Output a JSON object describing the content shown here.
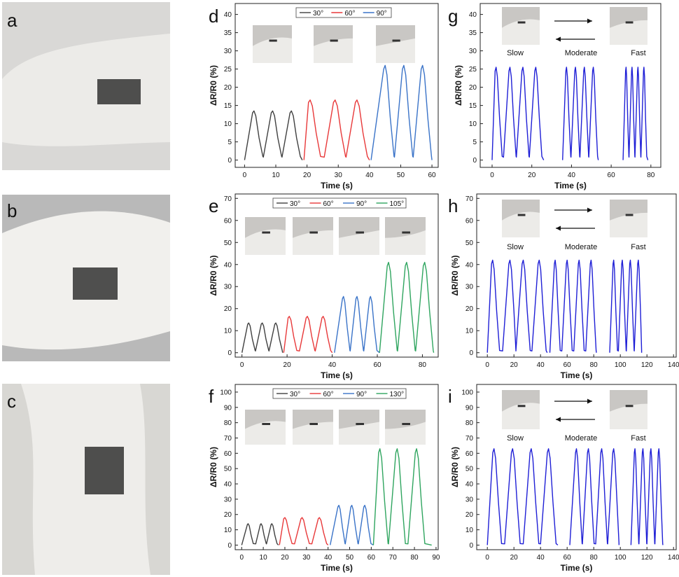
{
  "panel_letters": [
    "a",
    "b",
    "c",
    "d",
    "e",
    "f",
    "g",
    "h",
    "i"
  ],
  "photos": [
    {
      "name": "photo-a-wrist",
      "bg": "#d9d8d6",
      "skin": "#ecebe8"
    },
    {
      "name": "photo-b-elbow",
      "bg": "#b9b9b9",
      "skin": "#f1f0ed"
    },
    {
      "name": "photo-c-knee",
      "bg": "#d8d7d3",
      "skin": "#eeedea"
    }
  ],
  "colors": {
    "c30": "#404040",
    "c60": "#e8393a",
    "c90": "#3a73c8",
    "c105": "#2fa55f",
    "cblue": "#1f1fd6",
    "axis": "#222222"
  },
  "speed_labels": {
    "slow": "Slow",
    "moderate": "Moderate",
    "fast": "Fast"
  },
  "chart_data": [
    {
      "panel": "d",
      "type": "line",
      "xlabel": "Time (s)",
      "ylabel": "ΔR/R0 (%)",
      "xlim": [
        -3,
        62
      ],
      "ylim": [
        -2,
        43
      ],
      "xticks": [
        0,
        10,
        20,
        30,
        40,
        50,
        60
      ],
      "yticks": [
        0,
        5,
        10,
        15,
        20,
        25,
        30,
        35,
        40
      ],
      "legend": [
        "30°",
        "60°",
        "90°"
      ],
      "series": [
        {
          "name": "30°",
          "color": "#404040",
          "peaks": [
            3,
            9,
            15
          ],
          "height": 13.5,
          "period": 6,
          "start": 0,
          "end": 18.5
        },
        {
          "name": "60°",
          "color": "#e8393a",
          "peaks": [
            21,
            29,
            36
          ],
          "height": 16.5,
          "period": 7,
          "start": 19,
          "end": 40
        },
        {
          "name": "90°",
          "color": "#3a73c8",
          "peaks": [
            45,
            51,
            57
          ],
          "height": 26,
          "period": 6,
          "start": 40.5,
          "end": 60
        }
      ],
      "insets": 3
    },
    {
      "panel": "e",
      "type": "line",
      "xlabel": "Time (s)",
      "ylabel": "ΔR/R0 (%)",
      "xlim": [
        -3,
        87
      ],
      "ylim": [
        -2,
        72
      ],
      "xticks": [
        0,
        20,
        40,
        60,
        80
      ],
      "yticks": [
        0,
        10,
        20,
        30,
        40,
        50,
        60,
        70
      ],
      "legend": [
        "30°",
        "60°",
        "90°",
        "105°"
      ],
      "series": [
        {
          "name": "30°",
          "color": "#404040",
          "peaks": [
            3,
            9,
            15
          ],
          "height": 13.5,
          "period": 6,
          "start": 0,
          "end": 18
        },
        {
          "name": "60°",
          "color": "#e8393a",
          "peaks": [
            21,
            29,
            36
          ],
          "height": 16.5,
          "period": 7,
          "start": 18.5,
          "end": 40
        },
        {
          "name": "90°",
          "color": "#3a73c8",
          "peaks": [
            45,
            51,
            57
          ],
          "height": 25.5,
          "period": 6,
          "start": 41,
          "end": 61
        },
        {
          "name": "105°",
          "color": "#2fa55f",
          "peaks": [
            65,
            73,
            81
          ],
          "height": 41,
          "period": 8,
          "start": 61,
          "end": 85
        }
      ],
      "insets": 4
    },
    {
      "panel": "f",
      "type": "line",
      "xlabel": "Time (s)",
      "ylabel": "ΔR/R0 (%)",
      "xlim": [
        -3,
        91
      ],
      "ylim": [
        -3,
        105
      ],
      "xticks": [
        0,
        10,
        20,
        30,
        40,
        50,
        60,
        70,
        80,
        90
      ],
      "yticks": [
        0,
        10,
        20,
        30,
        40,
        50,
        60,
        70,
        80,
        90,
        100
      ],
      "legend": [
        "30°",
        "60°",
        "90°",
        "130°"
      ],
      "series": [
        {
          "name": "30°",
          "color": "#404040",
          "peaks": [
            3,
            9,
            14
          ],
          "height": 14,
          "period": 5,
          "start": 0,
          "end": 17
        },
        {
          "name": "60°",
          "color": "#e8393a",
          "peaks": [
            20,
            28,
            36
          ],
          "height": 18,
          "period": 7,
          "start": 17.5,
          "end": 40
        },
        {
          "name": "90°",
          "color": "#3a73c8",
          "peaks": [
            45,
            51,
            57
          ],
          "height": 26,
          "period": 6,
          "start": 41,
          "end": 61
        },
        {
          "name": "130°",
          "color": "#2fa55f",
          "peaks": [
            64,
            72,
            81
          ],
          "height": 63,
          "period": 8,
          "start": 61,
          "end": 88
        }
      ],
      "insets": 4
    },
    {
      "panel": "g",
      "type": "line",
      "xlabel": "Time (s)",
      "ylabel": "ΔR/R0 (%)",
      "xlim": [
        -6,
        85
      ],
      "ylim": [
        -2,
        43
      ],
      "xticks": [
        0,
        20,
        40,
        60,
        80
      ],
      "yticks": [
        0,
        5,
        10,
        15,
        20,
        25,
        30,
        35,
        40
      ],
      "series": [
        {
          "name": "Slow",
          "color": "#1f1fd6",
          "peaks": [
            2,
            9,
            15.5,
            22
          ],
          "height": 25.5,
          "period": 6.5,
          "start": 0,
          "end": 26
        },
        {
          "name": "Moderate",
          "color": "#1f1fd6",
          "peaks": [
            37.5,
            42,
            46.5,
            51
          ],
          "height": 25.5,
          "period": 4.5,
          "start": 35.5,
          "end": 53.5
        },
        {
          "name": "Fast",
          "color": "#1f1fd6",
          "peaks": [
            67.5,
            70.5,
            73.5,
            76.5
          ],
          "height": 25.5,
          "period": 3,
          "start": 66,
          "end": 78.5
        }
      ],
      "insets": 2
    },
    {
      "panel": "h",
      "type": "line",
      "xlabel": "Time (s)",
      "ylabel": "ΔR/R0 (%)",
      "xlim": [
        -8,
        142
      ],
      "ylim": [
        -2,
        72
      ],
      "xticks": [
        0,
        20,
        40,
        60,
        80,
        100,
        120,
        140
      ],
      "yticks": [
        0,
        10,
        20,
        30,
        40,
        50,
        60,
        70
      ],
      "series": [
        {
          "name": "Slow",
          "color": "#1f1fd6",
          "peaks": [
            4,
            17,
            27,
            39
          ],
          "height": 42,
          "period": 11,
          "start": 0,
          "end": 45
        },
        {
          "name": "Moderate",
          "color": "#1f1fd6",
          "peaks": [
            51,
            60,
            69,
            78
          ],
          "height": 42,
          "period": 8,
          "start": 47,
          "end": 82
        },
        {
          "name": "Fast",
          "color": "#1f1fd6",
          "peaks": [
            95,
            101.5,
            107.5,
            113.5
          ],
          "height": 42,
          "period": 6,
          "start": 92,
          "end": 116
        }
      ],
      "insets": 2
    },
    {
      "panel": "i",
      "type": "line",
      "xlabel": "Time (s)",
      "ylabel": "ΔR/R0 (%)",
      "xlim": [
        -8,
        142
      ],
      "ylim": [
        -3,
        105
      ],
      "xticks": [
        0,
        20,
        40,
        60,
        80,
        100,
        120,
        140
      ],
      "yticks": [
        0,
        10,
        20,
        30,
        40,
        50,
        60,
        70,
        80,
        90,
        100
      ],
      "series": [
        {
          "name": "Slow",
          "color": "#1f1fd6",
          "peaks": [
            5,
            19,
            33,
            46
          ],
          "height": 63,
          "period": 12,
          "start": 0,
          "end": 53
        },
        {
          "name": "Moderate",
          "color": "#1f1fd6",
          "peaks": [
            67,
            76,
            86,
            95
          ],
          "height": 63,
          "period": 9,
          "start": 62,
          "end": 99
        },
        {
          "name": "Fast",
          "color": "#1f1fd6",
          "peaks": [
            111,
            117,
            123,
            129
          ],
          "height": 63,
          "period": 6,
          "start": 108,
          "end": 132
        }
      ],
      "insets": 2
    }
  ]
}
